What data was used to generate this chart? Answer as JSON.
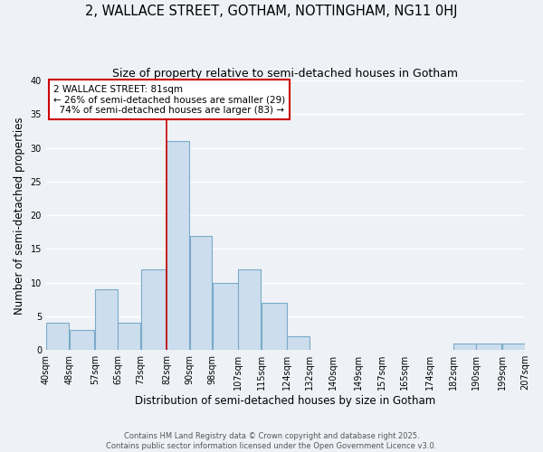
{
  "title": "2, WALLACE STREET, GOTHAM, NOTTINGHAM, NG11 0HJ",
  "subtitle": "Size of property relative to semi-detached houses in Gotham",
  "xlabel": "Distribution of semi-detached houses by size in Gotham",
  "ylabel": "Number of semi-detached properties",
  "bin_edges": [
    40,
    48,
    57,
    65,
    73,
    82,
    90,
    98,
    107,
    115,
    124,
    132,
    140,
    149,
    157,
    165,
    174,
    182,
    190,
    199,
    207
  ],
  "bin_labels": [
    "40sqm",
    "48sqm",
    "57sqm",
    "65sqm",
    "73sqm",
    "82sqm",
    "90sqm",
    "98sqm",
    "107sqm",
    "115sqm",
    "124sqm",
    "132sqm",
    "140sqm",
    "149sqm",
    "157sqm",
    "165sqm",
    "174sqm",
    "182sqm",
    "190sqm",
    "199sqm",
    "207sqm"
  ],
  "counts": [
    4,
    3,
    9,
    4,
    12,
    31,
    17,
    10,
    12,
    7,
    2,
    0,
    0,
    0,
    0,
    0,
    0,
    1,
    1,
    1
  ],
  "bar_color": "#ccdded",
  "bar_edge_color": "#7aaac8",
  "vline_x": 82,
  "vline_color": "#cc0000",
  "annotation_box_color": "#cc0000",
  "property_label": "2 WALLACE STREET: 81sqm",
  "pct_smaller": 26,
  "n_smaller": 29,
  "pct_larger": 74,
  "n_larger": 83,
  "ylim": [
    0,
    40
  ],
  "yticks": [
    0,
    5,
    10,
    15,
    20,
    25,
    30,
    35,
    40
  ],
  "background_color": "#eef2f7",
  "grid_color": "#ffffff",
  "footer_line1": "Contains HM Land Registry data © Crown copyright and database right 2025.",
  "footer_line2": "Contains public sector information licensed under the Open Government Licence v3.0.",
  "title_fontsize": 10.5,
  "subtitle_fontsize": 9,
  "axis_label_fontsize": 8.5,
  "tick_fontsize": 7,
  "annotation_fontsize": 7.5,
  "footer_fontsize": 6
}
